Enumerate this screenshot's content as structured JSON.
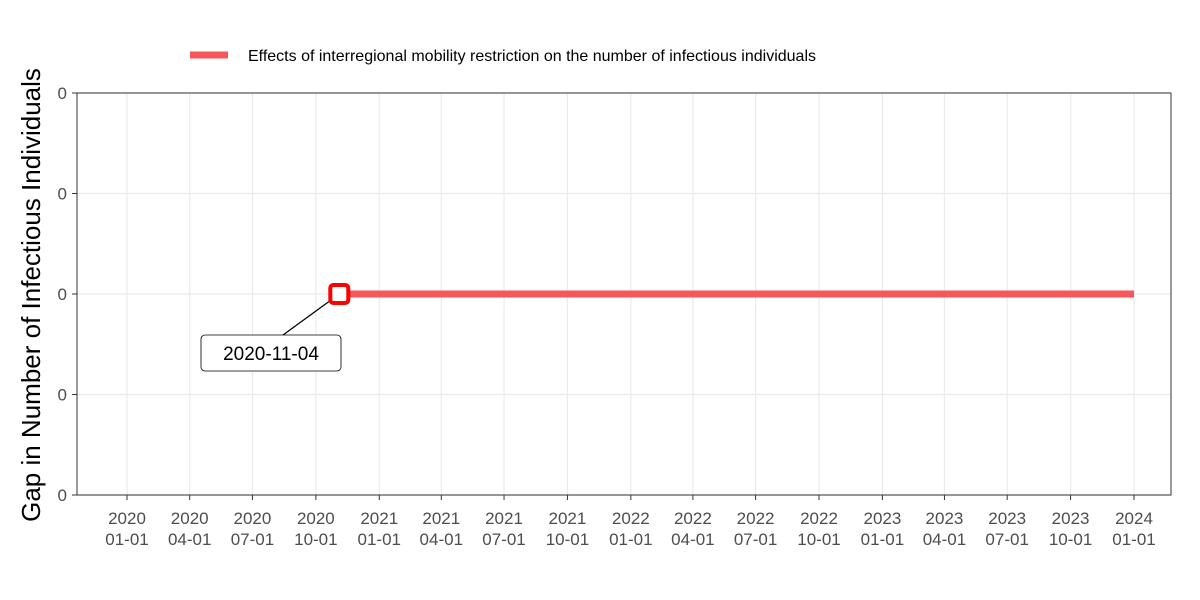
{
  "chart_data": {
    "type": "line",
    "xlabel": "",
    "ylabel": "Gap in Number of Infectious Individuals",
    "x_ticks": [
      "2020-01-01",
      "2020-04-01",
      "2020-07-01",
      "2020-10-01",
      "2021-01-01",
      "2021-04-01",
      "2021-07-01",
      "2021-10-01",
      "2022-01-01",
      "2022-04-01",
      "2022-07-01",
      "2022-10-01",
      "2023-01-01",
      "2023-04-01",
      "2023-07-01",
      "2023-10-01",
      "2024-01-01"
    ],
    "x_tick_labels": [
      [
        "2020",
        "01-01"
      ],
      [
        "2020",
        "04-01"
      ],
      [
        "2020",
        "07-01"
      ],
      [
        "2020",
        "10-01"
      ],
      [
        "2021",
        "01-01"
      ],
      [
        "2021",
        "04-01"
      ],
      [
        "2021",
        "07-01"
      ],
      [
        "2021",
        "10-01"
      ],
      [
        "2022",
        "01-01"
      ],
      [
        "2022",
        "04-01"
      ],
      [
        "2022",
        "07-01"
      ],
      [
        "2022",
        "10-01"
      ],
      [
        "2023",
        "01-01"
      ],
      [
        "2023",
        "04-01"
      ],
      [
        "2023",
        "07-01"
      ],
      [
        "2023",
        "10-01"
      ],
      [
        "2024",
        "01-01"
      ]
    ],
    "y_tick_labels": [
      "0",
      "0",
      "0",
      "0",
      "0"
    ],
    "ylim": [
      -2,
      2
    ],
    "grid": true,
    "legend_position": "top",
    "series": [
      {
        "name": "Effects of interregional mobility restriction on the number of infectious individuals",
        "color": "#F8575A",
        "x": [
          "2020-11-04",
          "2024-01-01"
        ],
        "y": [
          0,
          0
        ]
      }
    ],
    "annotation": {
      "date": "2020-11-04",
      "value": 0,
      "label": "2020-11-04",
      "marker_color": "#FF0000"
    }
  }
}
